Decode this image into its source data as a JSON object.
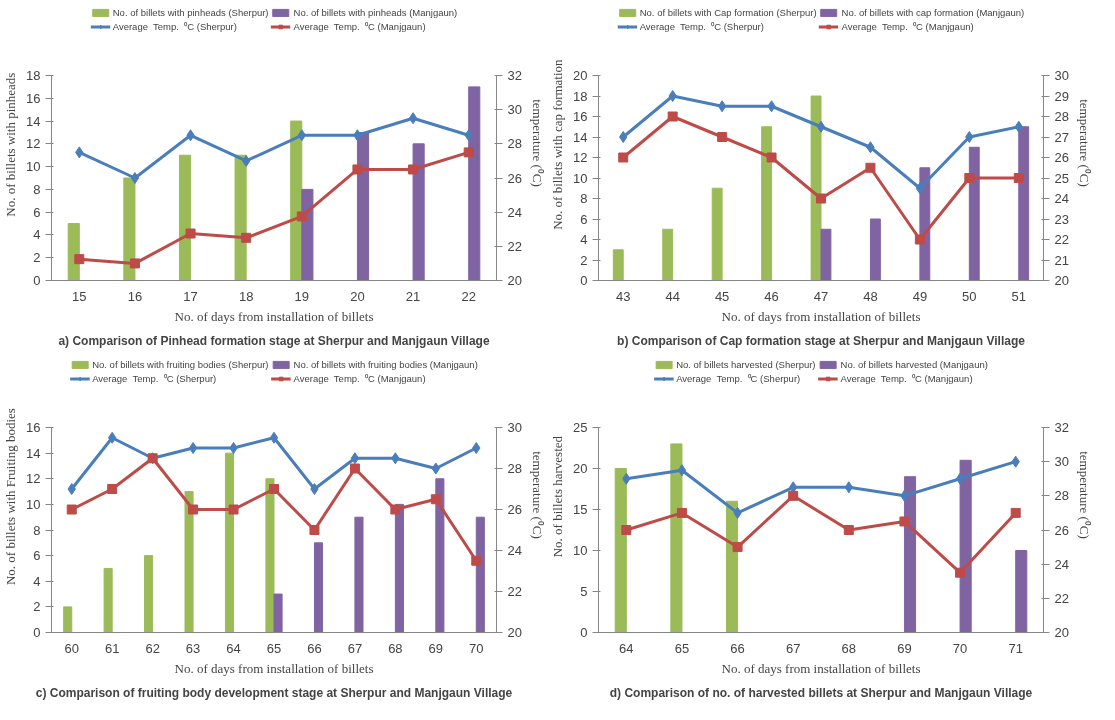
{
  "chart_data": [
    {
      "type": "bar",
      "title": "a) Comparison of Pinhead formation stage at Sherpur and Manjgaun Village",
      "xlabel": "No. of days from installation of billets",
      "ylabel": "No. of  billets with pinheads",
      "y2label": "temperature (⁰C)",
      "categories": [
        "15",
        "16",
        "17",
        "18",
        "19",
        "20",
        "21",
        "22"
      ],
      "ylim": [
        0,
        18
      ],
      "yticks": [
        0,
        2,
        4,
        6,
        8,
        10,
        12,
        14,
        16,
        18
      ],
      "y2lim": [
        20,
        32
      ],
      "y2ticks": [
        20,
        22,
        24,
        26,
        28,
        30,
        32
      ],
      "grid": false,
      "legend": "top",
      "series": [
        {
          "name": "No. of billets with pinheads (Sherpur)",
          "color": "#9bbb59",
          "values": [
            5,
            9,
            11,
            11,
            14,
            null,
            null,
            null
          ]
        },
        {
          "name": "No. of billets with pinheads (Manjgaun)",
          "color": "#8064a2",
          "values": [
            null,
            null,
            null,
            null,
            8,
            13,
            12,
            17
          ]
        },
        {
          "name": "Average  Temp.  ⁰C (Sherpur)",
          "type": "line",
          "axis": "y2",
          "marker": "diamond",
          "color": "#4a7ebb",
          "values": [
            27.5,
            26,
            28.5,
            27,
            28.5,
            28.5,
            29.5,
            28.5
          ]
        },
        {
          "name": "Average  Temp.  ⁰C (Manjgaun)",
          "type": "line",
          "axis": "y2",
          "marker": "square",
          "color": "#be4b48",
          "values": [
            21.25,
            21,
            22.75,
            22.5,
            23.75,
            26.5,
            26.5,
            27.5
          ]
        }
      ]
    },
    {
      "type": "bar",
      "title": "b) Comparison of Cap formation stage at Sherpur and Manjgaun Village",
      "xlabel": "No. of days from installation of billets",
      "ylabel": "No. of  billets with cap formation",
      "y2label": "temperature (⁰C)",
      "categories": [
        "43",
        "44",
        "45",
        "46",
        "47",
        "48",
        "49",
        "50",
        "51"
      ],
      "ylim": [
        0,
        20
      ],
      "yticks": [
        0,
        2,
        4,
        6,
        8,
        10,
        12,
        14,
        16,
        18,
        20
      ],
      "y2lim": [
        20,
        30
      ],
      "y2ticks": [
        20,
        21,
        22,
        23,
        24,
        25,
        26,
        27,
        28,
        29,
        30
      ],
      "grid": false,
      "legend": "top",
      "series": [
        {
          "name": "No. of billets with Cap formation (Sherpur)",
          "color": "#9bbb59",
          "values": [
            3,
            5,
            9,
            15,
            18,
            null,
            null,
            null,
            null
          ]
        },
        {
          "name": "No. of billets with cap formation (Manjgaun)",
          "color": "#8064a2",
          "values": [
            null,
            null,
            null,
            null,
            5,
            6,
            11,
            13,
            15
          ]
        },
        {
          "name": "Average  Temp.  ⁰C (Sherpur)",
          "type": "line",
          "axis": "y2",
          "marker": "diamond",
          "color": "#4a7ebb",
          "values": [
            27,
            29,
            28.5,
            28.5,
            27.5,
            26.5,
            24.5,
            27,
            27.5
          ]
        },
        {
          "name": "Average  Temp.  ⁰C (Manjgaun)",
          "type": "line",
          "axis": "y2",
          "marker": "square",
          "color": "#be4b48",
          "values": [
            26,
            28,
            27,
            26,
            24,
            25.5,
            22,
            25,
            25
          ]
        }
      ]
    },
    {
      "type": "bar",
      "title": "c) Comparison of fruiting body development stage at Sherpur and Manjgaun Village",
      "xlabel": "No. of days from installation of billets",
      "ylabel": "No. of  billets with Fruiting bodies",
      "y2label": "temperature (⁰C)",
      "categories": [
        "60",
        "61",
        "62",
        "63",
        "64",
        "65",
        "66",
        "67",
        "68",
        "69",
        "70"
      ],
      "ylim": [
        0,
        16
      ],
      "yticks": [
        0,
        2,
        4,
        6,
        8,
        10,
        12,
        14,
        16
      ],
      "y2lim": [
        20,
        30
      ],
      "y2ticks": [
        20,
        22,
        24,
        26,
        28,
        30
      ],
      "grid": false,
      "legend": "top",
      "series": [
        {
          "name": "No. of billets with fruiting bodies (Sherpur)",
          "color": "#9bbb59",
          "values": [
            2,
            5,
            6,
            11,
            14,
            12,
            null,
            null,
            null,
            null,
            null
          ]
        },
        {
          "name": "No. of billets with fruiting bodies (Manjgaun)",
          "color": "#8064a2",
          "values": [
            null,
            null,
            null,
            null,
            null,
            3,
            7,
            9,
            10,
            12,
            9
          ]
        },
        {
          "name": "Average  Temp.  ⁰C (Sherpur)",
          "type": "line",
          "axis": "y2",
          "marker": "diamond",
          "color": "#4a7ebb",
          "values": [
            27,
            29.5,
            28.5,
            29,
            29,
            29.5,
            27,
            28.5,
            28.5,
            28,
            29
          ]
        },
        {
          "name": "Average  Temp.  ⁰C (Manjgaun)",
          "type": "line",
          "axis": "y2",
          "marker": "square",
          "color": "#be4b48",
          "values": [
            26,
            27,
            28.5,
            26,
            26,
            27,
            25,
            28,
            26,
            26.5,
            23.5
          ]
        }
      ]
    },
    {
      "type": "bar",
      "title": "d) Comparison of no. of harvested billets at Sherpur and Manjgaun Village",
      "xlabel": "No. of days from installation of billets",
      "ylabel": "No. of  billets harvested",
      "y2label": "temperature (⁰C)",
      "categories": [
        "64",
        "65",
        "66",
        "67",
        "68",
        "69",
        "70",
        "71"
      ],
      "ylim": [
        0,
        25
      ],
      "yticks": [
        0,
        5,
        10,
        15,
        20,
        25
      ],
      "y2lim": [
        20,
        32
      ],
      "y2ticks": [
        20,
        22,
        24,
        26,
        28,
        30,
        32
      ],
      "grid": false,
      "legend": "top",
      "series": [
        {
          "name": "No. of billets harvested (Sherpur)",
          "color": "#9bbb59",
          "values": [
            20,
            23,
            16,
            null,
            null,
            null,
            null,
            null
          ]
        },
        {
          "name": "No. of billets harvested (Manjgaun)",
          "color": "#8064a2",
          "values": [
            null,
            null,
            null,
            null,
            null,
            19,
            21,
            10
          ]
        },
        {
          "name": "Average  Temp.  ⁰C (Sherpur)",
          "type": "line",
          "axis": "y2",
          "marker": "diamond",
          "color": "#4a7ebb",
          "values": [
            29,
            29.5,
            27,
            28.5,
            28.5,
            28,
            29,
            30
          ]
        },
        {
          "name": "Average  Temp.  ⁰C (Manjgaun)",
          "type": "line",
          "axis": "y2",
          "marker": "square",
          "color": "#be4b48",
          "values": [
            26,
            27,
            25,
            28,
            26,
            26.5,
            23.5,
            27
          ]
        }
      ]
    }
  ]
}
